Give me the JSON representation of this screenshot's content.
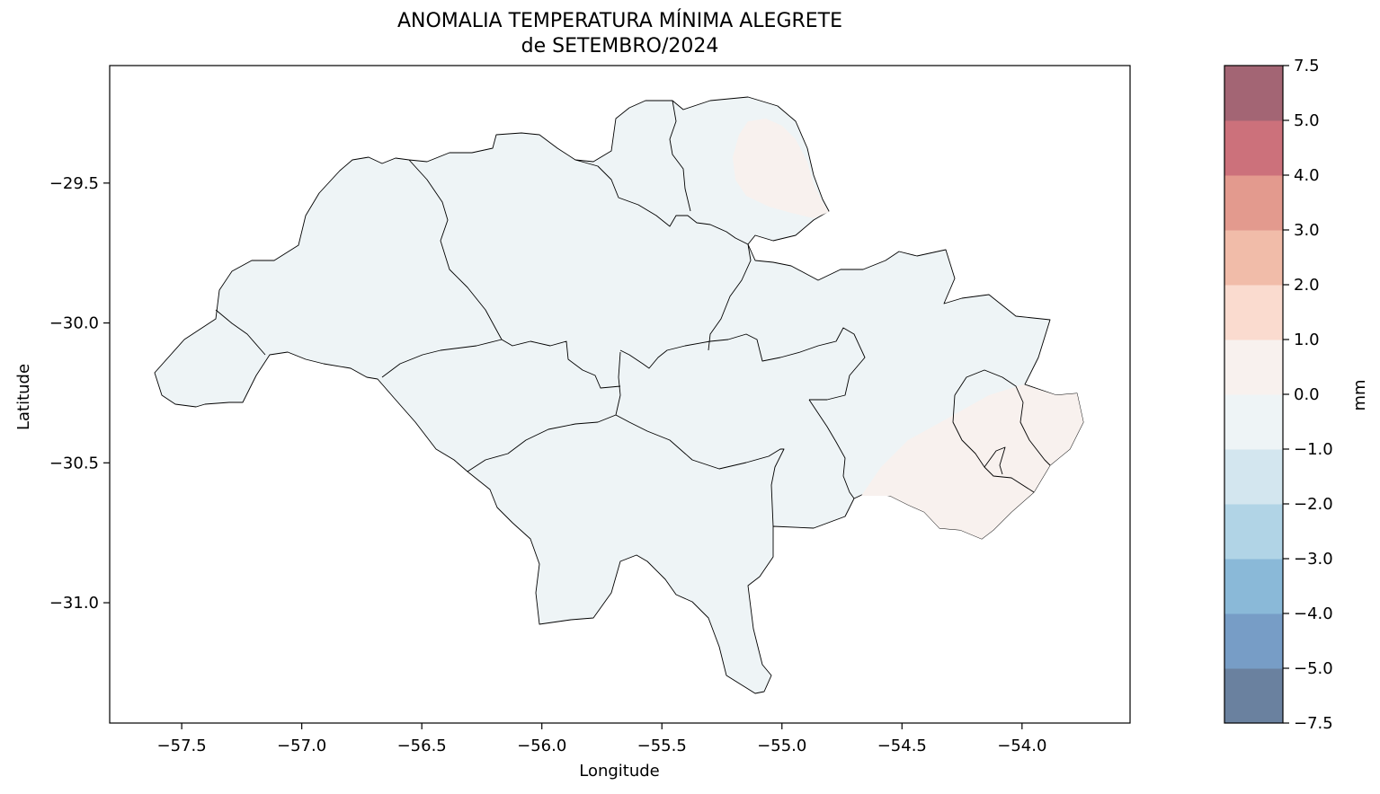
{
  "map": {
    "title_line1": "ANOMALIA TEMPERATURA MÍNIMA ALEGRETE",
    "title_line2": "de SETEMBRO/2024",
    "xlabel": "Longitude",
    "ylabel": "Latitude",
    "x_range": [
      -57.8,
      -53.55
    ],
    "y_range": [
      -31.43,
      -29.08
    ],
    "x_ticks": [
      {
        "v": -57.5,
        "label": "−57.5"
      },
      {
        "v": -57.0,
        "label": "−57.0"
      },
      {
        "v": -56.5,
        "label": "−56.5"
      },
      {
        "v": -56.0,
        "label": "−56.0"
      },
      {
        "v": -55.5,
        "label": "−55.5"
      },
      {
        "v": -55.0,
        "label": "−55.0"
      },
      {
        "v": -54.5,
        "label": "−54.5"
      },
      {
        "v": -54.0,
        "label": "−54.0"
      }
    ],
    "y_ticks": [
      {
        "v": -29.5,
        "label": "−29.5"
      },
      {
        "v": -30.0,
        "label": "−30.0"
      },
      {
        "v": -30.5,
        "label": "−30.5"
      },
      {
        "v": -31.0,
        "label": "−31.0"
      }
    ],
    "fill_color": "#eef4f6",
    "warm_color": "#f8f1ee",
    "border_color": "#000000"
  },
  "colorbar": {
    "label": "mm",
    "levels": [
      -7.5,
      -5.0,
      -4.0,
      -3.0,
      -2.0,
      -1.0,
      0.0,
      1.0,
      2.0,
      3.0,
      4.0,
      5.0,
      7.5
    ],
    "tick_labels": [
      "−7.5",
      "−5.0",
      "−4.0",
      "−3.0",
      "−2.0",
      "−1.0",
      "0.0",
      "1.0",
      "2.0",
      "3.0",
      "4.0",
      "5.0",
      "7.5"
    ],
    "colors": [
      "#6a819f",
      "#779dc6",
      "#8ab9d8",
      "#b1d4e6",
      "#d3e6ef",
      "#eef4f6",
      "#f8f1ee",
      "#fadbcf",
      "#f1bca9",
      "#e39a8e",
      "#cc717b",
      "#a36574"
    ]
  }
}
